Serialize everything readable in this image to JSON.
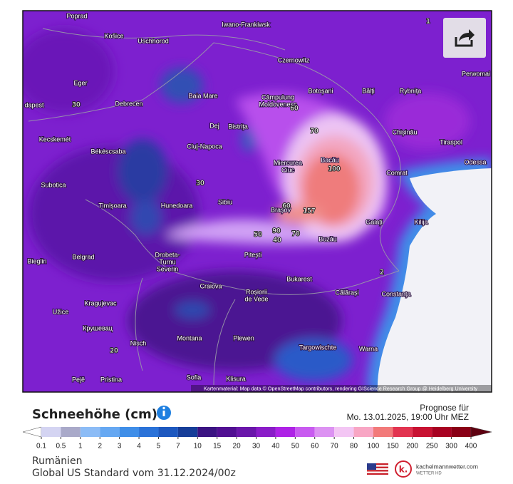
{
  "map": {
    "places": [
      "Poprad",
      "Košice",
      "Uschhorod",
      "Iwano-Frankiwsk",
      "Czernowitz",
      "Perwomai",
      "Eger",
      "Baia Mare",
      "Câmpulung",
      "Moldovenesc",
      "Botoșani",
      "Bălți",
      "Rybnița",
      "dapest",
      "Debrecen",
      "Dej",
      "Bistrița",
      "Chișinău",
      "Kecskemét",
      "Cluj-Napoca",
      "Tiraspol",
      "Békéscsaba",
      "Miercurea",
      "Ciuc",
      "Bacău",
      "Comrat",
      "Odessa",
      "Subotica",
      "Timișoara",
      "Hunedoara",
      "Sibiu",
      "Brașov",
      "Galați",
      "Kilija",
      "Buzău",
      "Belgrad",
      "Drobeta-",
      "Turnu",
      "Severin",
      "Pitești",
      "Bieglin",
      "Bukarest",
      "Craiova",
      "Roșiorii",
      "de Vede",
      "Kragujevac",
      "Călărași",
      "Constanța",
      "Užice",
      "Крушевац",
      "Montana",
      "Plewen",
      "Nisch",
      "Targowischte",
      "Warna",
      "Sofia",
      "Pristina",
      "Pejë",
      "Klisura"
    ],
    "contour_labels": [
      30,
      60,
      70,
      100,
      60,
      157,
      50,
      90,
      70,
      40,
      30,
      2,
      20,
      1
    ],
    "attribution": "Kartenmaterial: Map data © OpenStreetMap contributors, rendering GIScience Research Group @ Heidelberg University"
  },
  "legend": {
    "title": "Schneehöhe (cm)",
    "ticks": [
      0.1,
      0.5,
      1,
      2,
      3,
      4,
      5,
      7,
      10,
      15,
      20,
      30,
      40,
      50,
      60,
      70,
      80,
      100,
      150,
      200,
      250,
      300,
      400
    ],
    "colors": [
      "#ffffff",
      "#d4d4f2",
      "#a9a9c9",
      "#8cbcf6",
      "#66a8f2",
      "#3f8ee8",
      "#2a72d8",
      "#1d58bf",
      "#163d98",
      "#3b1382",
      "#510f92",
      "#6a16aa",
      "#8a1cc8",
      "#ae22e6",
      "#c85af0",
      "#dc92f2",
      "#f3c6f4",
      "#f8a6c4",
      "#f27a7a",
      "#e23450",
      "#c81232",
      "#a80222",
      "#8a0016",
      "#5e0010"
    ]
  },
  "forecast": {
    "label": "Prognose für",
    "time": "Mo. 13.01.2025, 19:00 Uhr MEZ"
  },
  "footer": {
    "region": "Rumänien",
    "model": "Global US Standard vom 31.12.2024/00z"
  },
  "logo": {
    "mark": "k.",
    "name": "kachelmannwetter.com",
    "sub": "WETTER HD"
  }
}
